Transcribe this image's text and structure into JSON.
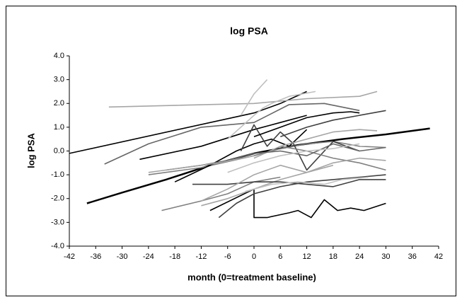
{
  "chart_data": {
    "type": "line",
    "title": "log PSA",
    "x_label": "month (0=treatment baseline)",
    "y_label": "log PSA",
    "xlim": [
      -42,
      42
    ],
    "xticks": [
      -42,
      -36,
      -30,
      -24,
      -18,
      -12,
      -6,
      0,
      6,
      12,
      18,
      24,
      30,
      36,
      42
    ],
    "ylim": [
      -4,
      4
    ],
    "yticks": [
      {
        "value": -4,
        "label": "-4.0"
      },
      {
        "value": -3,
        "label": "-3.0"
      },
      {
        "value": -2,
        "label": "-2.0"
      },
      {
        "value": -1,
        "label": "-1.0"
      },
      {
        "value": 0,
        "label": "0.0"
      },
      {
        "value": 1,
        "label": "1.0"
      },
      {
        "value": 2,
        "label": "2.0"
      },
      {
        "value": 3,
        "label": "3.0"
      },
      {
        "value": 4,
        "label": "4.0"
      }
    ],
    "grid": false,
    "series": [
      {
        "color": "#000000",
        "line_width": 2.5,
        "x": [
          -38,
          -30,
          -20,
          -10,
          0,
          10,
          20,
          30,
          40
        ],
        "values": [
          -2.2,
          -1.75,
          -1.2,
          -0.6,
          -0.1,
          0.25,
          0.5,
          0.7,
          0.95
        ]
      },
      {
        "color": "#000000",
        "x": [
          -42,
          0,
          6,
          12
        ],
        "values": [
          -0.1,
          1.6,
          2.0,
          2.5
        ]
      },
      {
        "color": "#a6a6a6",
        "x": [
          -33,
          0,
          12,
          24,
          28
        ],
        "values": [
          1.85,
          2.0,
          2.2,
          2.3,
          2.5
        ]
      },
      {
        "color": "#000000",
        "x": [
          -26,
          -12,
          0,
          6,
          12
        ],
        "values": [
          -0.35,
          0.2,
          0.9,
          1.2,
          1.5
        ]
      },
      {
        "color": "#666666",
        "x": [
          -34,
          -24,
          -12,
          0,
          8,
          16,
          24
        ],
        "values": [
          -0.55,
          0.3,
          1.0,
          1.2,
          1.95,
          2.0,
          1.7
        ]
      },
      {
        "color": "#000000",
        "x": [
          -10,
          0,
          0,
          3,
          8,
          10,
          13,
          16,
          19,
          22,
          25,
          30
        ],
        "values": [
          -2.5,
          -1.6,
          -2.8,
          -2.8,
          -2.6,
          -2.5,
          -2.8,
          -2.05,
          -2.5,
          -2.4,
          -2.5,
          -2.2
        ]
      },
      {
        "color": "#808080",
        "x": [
          -21,
          -12,
          -6,
          0,
          6
        ],
        "values": [
          -2.5,
          -2.1,
          -1.8,
          -1.3,
          -1.1
        ]
      },
      {
        "color": "#a6a6a6",
        "x": [
          -12,
          -6,
          0,
          6,
          12,
          18
        ],
        "values": [
          -2.3,
          -2.0,
          -1.6,
          -1.2,
          -0.9,
          -0.6
        ]
      },
      {
        "color": "#404040",
        "x": [
          -8,
          -4,
          0,
          6,
          12,
          18,
          24,
          30
        ],
        "values": [
          -2.8,
          -2.2,
          -1.8,
          -1.5,
          -1.3,
          -1.2,
          -1.1,
          -1.0
        ]
      },
      {
        "color": "#404040",
        "x": [
          -14,
          -6,
          0,
          6,
          12,
          18,
          24,
          30
        ],
        "values": [
          -1.4,
          -1.4,
          -1.3,
          -1.3,
          -1.4,
          -1.5,
          -1.2,
          -1.2
        ]
      },
      {
        "color": "#c0c0c0",
        "x": [
          -2,
          4,
          10,
          16,
          20,
          26
        ],
        "values": [
          -1.7,
          -1.4,
          -1.3,
          -1.4,
          -1.2,
          -1.1
        ]
      },
      {
        "color": "#808080",
        "x": [
          -24,
          -12,
          0,
          6,
          12,
          18,
          24,
          30
        ],
        "values": [
          -1.0,
          -0.7,
          -0.2,
          0.1,
          0.3,
          0.4,
          0.2,
          0.15
        ]
      },
      {
        "color": "#000000",
        "x": [
          -18,
          -10,
          -4,
          0,
          4,
          8,
          12
        ],
        "values": [
          -1.3,
          -0.6,
          0.0,
          0.3,
          0.5,
          0.2,
          0.9
        ]
      },
      {
        "color": "#404040",
        "x": [
          -3,
          0,
          3,
          6,
          9,
          12,
          18,
          24
        ],
        "values": [
          0.0,
          1.1,
          0.2,
          0.8,
          0.3,
          -0.8,
          0.4,
          0.0
        ]
      },
      {
        "color": "#c0c0c0",
        "x": [
          -6,
          0,
          2,
          4,
          8,
          14
        ],
        "values": [
          0.5,
          1.5,
          1.8,
          2.0,
          2.3,
          2.5
        ]
      },
      {
        "color": "#c0c0c0",
        "x": [
          -3,
          0,
          3
        ],
        "values": [
          1.5,
          2.4,
          3.0
        ]
      },
      {
        "color": "#808080",
        "x": [
          6,
          12,
          18,
          24,
          30
        ],
        "values": [
          0.2,
          0.0,
          -0.3,
          -0.5,
          -0.8
        ]
      },
      {
        "color": "#a6a6a6",
        "x": [
          0,
          6,
          12,
          18,
          24,
          28
        ],
        "values": [
          -0.3,
          0.2,
          0.5,
          0.8,
          0.9,
          0.85
        ]
      },
      {
        "color": "#666666",
        "x": [
          -20,
          -12,
          -6,
          0,
          6,
          12,
          18,
          24,
          30
        ],
        "values": [
          -0.8,
          -0.6,
          -0.4,
          -0.1,
          0.0,
          -0.2,
          0.3,
          0.0,
          0.15
        ]
      },
      {
        "color": "#404040",
        "x": [
          6,
          12,
          18,
          24,
          30
        ],
        "values": [
          0.6,
          1.0,
          1.3,
          1.5,
          1.7
        ]
      },
      {
        "color": "#c0c0c0",
        "x": [
          -6,
          0,
          6,
          12,
          18,
          24
        ],
        "values": [
          -0.9,
          -0.5,
          -0.2,
          0.0,
          0.1,
          0.3
        ]
      },
      {
        "color": "#000000",
        "x": [
          0,
          6,
          12,
          18,
          22,
          24
        ],
        "values": [
          0.6,
          1.0,
          1.4,
          1.6,
          1.65,
          1.6
        ]
      },
      {
        "color": "#a6a6a6",
        "x": [
          -24,
          -16,
          -8,
          0
        ],
        "values": [
          -0.9,
          -0.7,
          -0.5,
          -0.2
        ]
      },
      {
        "color": "#a6a6a6",
        "x": [
          -12,
          -6,
          0,
          6,
          12,
          18,
          24,
          30
        ],
        "values": [
          -2.1,
          -1.6,
          -1.0,
          -0.6,
          -0.9,
          -0.5,
          -0.3,
          -0.4
        ]
      }
    ]
  }
}
